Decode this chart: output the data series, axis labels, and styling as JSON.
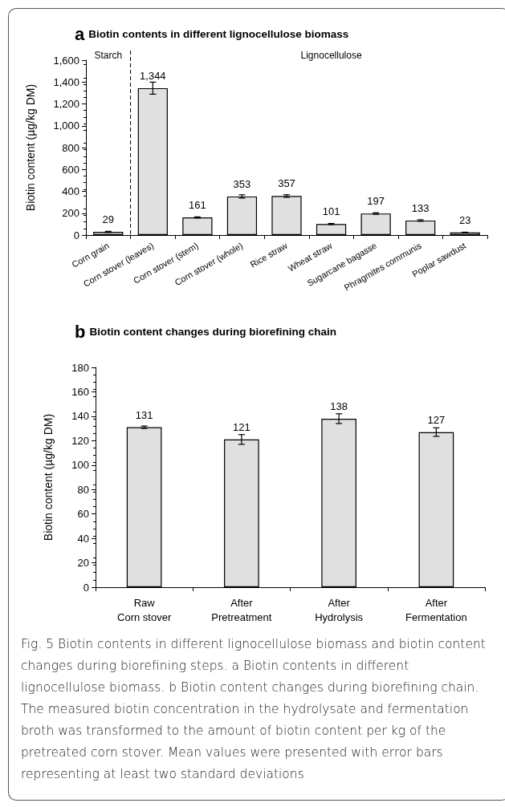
{
  "chart_data": [
    {
      "type": "bar",
      "title": "a Biotin contents in different lignocellulose biomass",
      "ylabel": "Biotin content (µg/kg DM)",
      "categories": [
        "Corn grain",
        "Corn stover (leaves)",
        "Corn stover (stem)",
        "Corn stover (whole)",
        "Rice straw",
        "Wheat straw",
        "Sugarcane bagasse",
        "Phragmites communis",
        "Poplar sawdust"
      ],
      "values": [
        29,
        1344,
        161,
        353,
        357,
        101,
        197,
        133,
        23
      ],
      "value_labels": [
        "29",
        "1,344",
        "161",
        "353",
        "357",
        "101",
        "197",
        "133",
        "23"
      ],
      "errors": [
        5,
        55,
        5,
        15,
        12,
        5,
        7,
        7,
        3
      ],
      "color": "#e0e0e0",
      "ylim": [
        0,
        1600
      ],
      "yticks": [
        0,
        200,
        400,
        600,
        800,
        {
          "value": 1000,
          "label": "1,000"
        },
        {
          "value": 1200,
          "label": "1,200"
        },
        {
          "value": 1400,
          "label": "1,400"
        },
        {
          "value": 1600,
          "label": "1,600"
        }
      ],
      "annotations": [
        "Starch",
        "Lignocellulose"
      ],
      "grid": false
    },
    {
      "type": "bar",
      "title": "b Biotin content changes during biorefining chain",
      "ylabel": "Biotin content (µg/kg DM)",
      "categories": [
        "Raw\nCorn stover",
        "After\nPretreatment",
        "After\nHydrolysis",
        "After\nFermentation"
      ],
      "values": [
        131,
        121,
        138,
        127
      ],
      "errors": [
        1,
        4,
        4,
        3.5
      ],
      "data_labels": true,
      "color": "#e0e0e0",
      "ylim": [
        0,
        180
      ],
      "yticks": [
        0,
        20,
        40,
        60,
        80,
        100,
        120,
        140,
        160,
        180
      ],
      "grid": false,
      "annotations": [
        "Fig. 5  Biotin contents in different lignocellulose biomass and biotin content changes during biorefining steps. a Biotin contents in different lignocellulose biomass. b Biotin content changes during biorefining chain. The measured biotin concentration in the hydrolysate and fermentation broth was transformed to the amount of biotin content per kg of the pretreated corn stover. Mean values were presented with error bars representing at least two standard deviations"
      ]
    }
  ]
}
